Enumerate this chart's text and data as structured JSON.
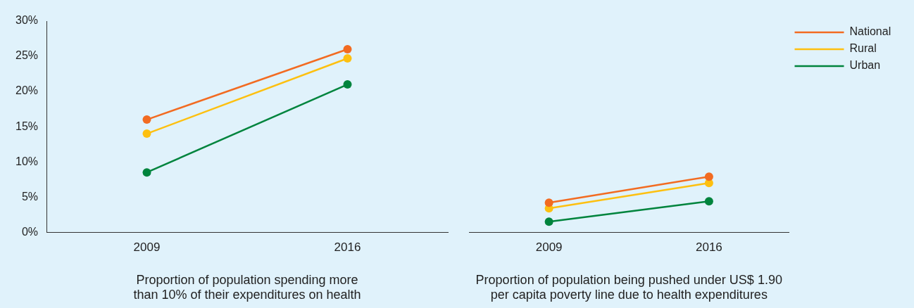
{
  "chart_data": [
    {
      "type": "line",
      "xlabel": "Proportion of population spending more than 10% of their expenditures on health",
      "categories": [
        "2009",
        "2016"
      ],
      "series": [
        {
          "color": "#f26b21",
          "values": [
            16,
            26
          ]
        },
        {
          "color": "#fdc010",
          "values": [
            14,
            24.7
          ]
        },
        {
          "color": "#00843d",
          "values": [
            8.5,
            21
          ]
        }
      ],
      "ylim": [
        0,
        30
      ],
      "yticks": [
        {
          "value": 0,
          "label": "0%"
        },
        {
          "value": 5,
          "label": "5%"
        },
        {
          "value": 10,
          "label": "10%"
        },
        {
          "value": 15,
          "label": "15%"
        },
        {
          "value": 20,
          "label": "20%"
        },
        {
          "value": 25,
          "label": "25%"
        },
        {
          "value": 30,
          "label": "30%"
        }
      ],
      "grid": false,
      "legend": false,
      "marker": "circle",
      "line_style": "solid"
    },
    {
      "type": "line",
      "xlabel": "Proportion of population being pushed under US$ 1.90 per capita poverty line due to health expenditures",
      "categories": [
        "2009",
        "2016"
      ],
      "series": [
        {
          "name": "National",
          "color": "#f26b21",
          "values": [
            4.2,
            7.9
          ]
        },
        {
          "name": "Rural",
          "color": "#fdc010",
          "values": [
            3.4,
            7
          ]
        },
        {
          "name": "Urban",
          "color": "#00843d",
          "values": [
            1.5,
            4.4
          ]
        }
      ],
      "ylim": [
        0,
        30
      ],
      "grid": false,
      "legend": "top right",
      "marker": "circle",
      "line_style": "solid",
      "tick_labels": "x"
    }
  ]
}
